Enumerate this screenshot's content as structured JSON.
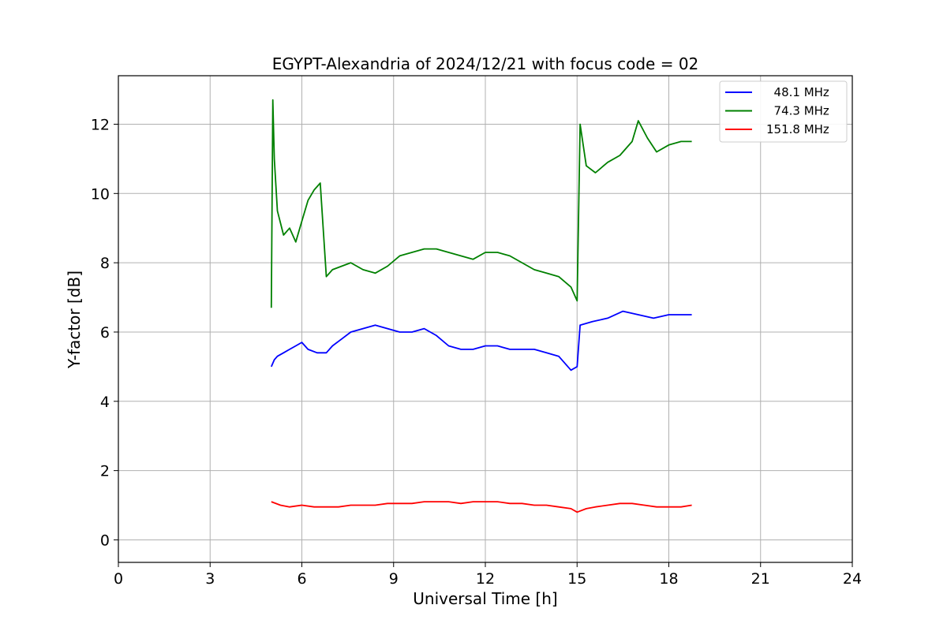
{
  "chart_data": {
    "type": "line",
    "title": "EGYPT-Alexandria of 2024/12/21 with focus code = 02",
    "xlabel": "Universal Time [h]",
    "ylabel": "Y-factor [dB]",
    "xlim": [
      0,
      24
    ],
    "ylim": [
      -0.65,
      13.4
    ],
    "xticks": [
      0,
      3,
      6,
      9,
      12,
      15,
      18,
      21,
      24
    ],
    "yticks": [
      0,
      2,
      4,
      6,
      8,
      10,
      12
    ],
    "grid": true,
    "legend_position": "top-right",
    "series": [
      {
        "name": "  48.1 MHz",
        "color": "#0000ff",
        "x": [
          5.0,
          5.1,
          5.2,
          5.4,
          5.6,
          5.8,
          6.0,
          6.2,
          6.5,
          6.8,
          7.0,
          7.3,
          7.6,
          8.0,
          8.4,
          8.8,
          9.2,
          9.6,
          10.0,
          10.4,
          10.8,
          11.2,
          11.6,
          12.0,
          12.4,
          12.8,
          13.2,
          13.6,
          14.0,
          14.4,
          14.8,
          15.0,
          15.1,
          15.5,
          16.0,
          16.5,
          17.0,
          17.5,
          18.0,
          18.5,
          18.75
        ],
        "y": [
          5.0,
          5.2,
          5.3,
          5.4,
          5.5,
          5.6,
          5.7,
          5.5,
          5.4,
          5.4,
          5.6,
          5.8,
          6.0,
          6.1,
          6.2,
          6.1,
          6.0,
          6.0,
          6.1,
          5.9,
          5.6,
          5.5,
          5.5,
          5.6,
          5.6,
          5.5,
          5.5,
          5.5,
          5.4,
          5.3,
          4.9,
          5.0,
          6.2,
          6.3,
          6.4,
          6.6,
          6.5,
          6.4,
          6.5,
          6.5,
          6.5
        ]
      },
      {
        "name": "  74.3 MHz",
        "color": "#008000",
        "x": [
          5.0,
          5.05,
          5.1,
          5.2,
          5.4,
          5.6,
          5.8,
          6.0,
          6.2,
          6.4,
          6.6,
          6.8,
          7.0,
          7.3,
          7.6,
          8.0,
          8.4,
          8.8,
          9.2,
          9.6,
          10.0,
          10.4,
          10.8,
          11.2,
          11.6,
          12.0,
          12.4,
          12.8,
          13.2,
          13.6,
          14.0,
          14.4,
          14.8,
          15.0,
          15.1,
          15.3,
          15.6,
          16.0,
          16.4,
          16.8,
          17.0,
          17.3,
          17.6,
          18.0,
          18.4,
          18.75
        ],
        "y": [
          6.7,
          12.7,
          11.0,
          9.5,
          8.8,
          9.0,
          8.6,
          9.2,
          9.8,
          10.1,
          10.3,
          7.6,
          7.8,
          7.9,
          8.0,
          7.8,
          7.7,
          7.9,
          8.2,
          8.3,
          8.4,
          8.4,
          8.3,
          8.2,
          8.1,
          8.3,
          8.3,
          8.2,
          8.0,
          7.8,
          7.7,
          7.6,
          7.3,
          6.9,
          12.0,
          10.8,
          10.6,
          10.9,
          11.1,
          11.5,
          12.1,
          11.6,
          11.2,
          11.4,
          11.5,
          11.5
        ]
      },
      {
        "name": "151.8 MHz",
        "color": "#ff0000",
        "x": [
          5.0,
          5.3,
          5.6,
          6.0,
          6.4,
          6.8,
          7.2,
          7.6,
          8.0,
          8.4,
          8.8,
          9.2,
          9.6,
          10.0,
          10.4,
          10.8,
          11.2,
          11.6,
          12.0,
          12.4,
          12.8,
          13.2,
          13.6,
          14.0,
          14.4,
          14.8,
          15.0,
          15.3,
          15.6,
          16.0,
          16.4,
          16.8,
          17.2,
          17.6,
          18.0,
          18.4,
          18.75
        ],
        "y": [
          1.1,
          1.0,
          0.95,
          1.0,
          0.95,
          0.95,
          0.95,
          1.0,
          1.0,
          1.0,
          1.05,
          1.05,
          1.05,
          1.1,
          1.1,
          1.1,
          1.05,
          1.1,
          1.1,
          1.1,
          1.05,
          1.05,
          1.0,
          1.0,
          0.95,
          0.9,
          0.8,
          0.9,
          0.95,
          1.0,
          1.05,
          1.05,
          1.0,
          0.95,
          0.95,
          0.95,
          1.0
        ]
      }
    ]
  }
}
